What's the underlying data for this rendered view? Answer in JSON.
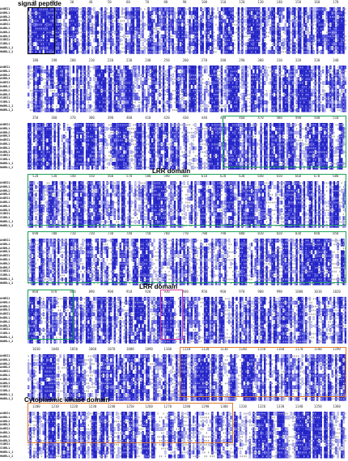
{
  "figure": {
    "annotations": {
      "signal_peptide": "signal peptide",
      "lrr_domain_1": "LRR domain",
      "lrr_domain_2": "LRR domain",
      "kinase_domain": "Cytoplasmic kinase domain"
    },
    "sequence_names": [
      "AtBRI1",
      "AtBRL1",
      "AtBRL2",
      "AtBRL3",
      "OsBRI1",
      "OsBRL1",
      "OsBRL2",
      "OsBRL3",
      "SlBRI1",
      "SlBRL1",
      "HbBRL1_1",
      "HbBRL1_2"
    ],
    "blocks": [
      {
        "ruler": [
          "10",
          "20",
          "30",
          "40",
          "50",
          "60",
          "70",
          "80",
          "90",
          "100",
          "110",
          "120",
          "130",
          "140",
          "150",
          "160",
          "170"
        ]
      },
      {
        "ruler": [
          "180",
          "190",
          "200",
          "210",
          "220",
          "230",
          "240",
          "250",
          "260",
          "270",
          "280",
          "290",
          "300",
          "310",
          "320",
          "330",
          "340"
        ]
      },
      {
        "ruler": [
          "350",
          "360",
          "370",
          "380",
          "390",
          "400",
          "410",
          "420",
          "430",
          "440",
          "450",
          "460",
          "470",
          "480",
          "490",
          "500",
          "510"
        ]
      },
      {
        "ruler": [
          "520",
          "530",
          "540",
          "550",
          "560",
          "570",
          "580",
          "590",
          "600",
          "610",
          "620",
          "630",
          "640",
          "650",
          "660",
          "670",
          "680"
        ]
      },
      {
        "ruler": [
          "690",
          "700",
          "710",
          "720",
          "730",
          "740",
          "750",
          "760",
          "770",
          "780",
          "790",
          "800",
          "810",
          "820",
          "830",
          "840",
          "850"
        ]
      },
      {
        "ruler": [
          "860",
          "870",
          "880",
          "890",
          "900",
          "910",
          "920",
          "930",
          "940",
          "950",
          "960",
          "970",
          "980",
          "990",
          "1000",
          "1010",
          "1020"
        ]
      },
      {
        "ruler": [
          "1030",
          "1040",
          "1050",
          "1060",
          "1070",
          "1080",
          "1090",
          "1100",
          "1110",
          "1120",
          "1130",
          "1140",
          "1150",
          "1160",
          "1170",
          "1180",
          "1190"
        ]
      },
      {
        "ruler": [
          "1200",
          "1210",
          "1220",
          "1230",
          "1240",
          "1250",
          "1260",
          "1270",
          "1280",
          "1290",
          "1300",
          "1310",
          "1320",
          "1330",
          "1340",
          "1350",
          "1360"
        ]
      }
    ],
    "colors": {
      "identical": "#2323c8",
      "similar": "#5a5adc",
      "weak": "#a8a8e8",
      "signal_box": "#000000",
      "lrr_box": "#1aa05a",
      "island_box": "#d63aa8",
      "kinase_box": "#e07a2a"
    }
  }
}
